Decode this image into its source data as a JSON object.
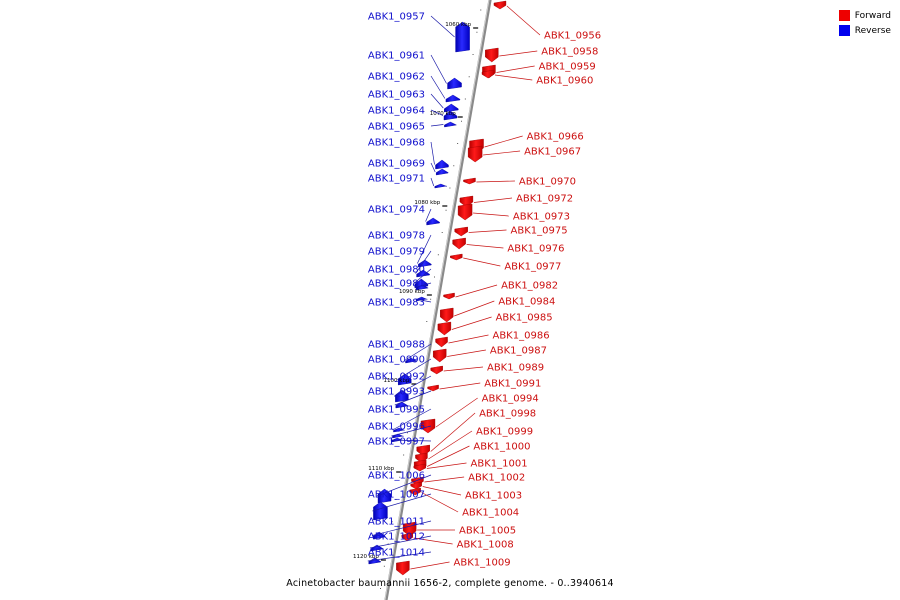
{
  "legend": {
    "forward_label": "Forward",
    "reverse_label": "Reverse",
    "forward_color": "#ee0000",
    "reverse_color": "#0000ee"
  },
  "caption": "Acinetobacter baumannii 1656-2, complete genome. - 0..3940614",
  "scale_ticks": [
    "1060 kbp",
    "1070 kbp",
    "1080 kbp",
    "1090 kbp",
    "1100 kbp",
    "1110 kbp",
    "1120 kbp"
  ],
  "genes_reverse": [
    "ABK1_0957",
    "ABK1_0961",
    "ABK1_0962",
    "ABK1_0963",
    "ABK1_0964",
    "ABK1_0965",
    "ABK1_0968",
    "ABK1_0969",
    "ABK1_0971",
    "ABK1_0974",
    "ABK1_0978",
    "ABK1_0979",
    "ABK1_0980",
    "ABK1_0981",
    "ABK1_0983",
    "ABK1_0988",
    "ABK1_0990",
    "ABK1_0992",
    "ABK1_0993",
    "ABK1_0995",
    "ABK1_0996",
    "ABK1_0997",
    "ABK1_1006",
    "ABK1_1007",
    "ABK1_1011",
    "ABK1_1012",
    "ABK1_1014"
  ],
  "genes_forward": [
    "ABK1_0956",
    "ABK1_0958",
    "ABK1_0959",
    "ABK1_0960",
    "ABK1_0966",
    "ABK1_0967",
    "ABK1_0970",
    "ABK1_0972",
    "ABK1_0973",
    "ABK1_0975",
    "ABK1_0976",
    "ABK1_0977",
    "ABK1_0982",
    "ABK1_0984",
    "ABK1_0985",
    "ABK1_0986",
    "ABK1_0987",
    "ABK1_0989",
    "ABK1_0991",
    "ABK1_0994",
    "ABK1_0998",
    "ABK1_0999",
    "ABK1_1000",
    "ABK1_1001",
    "ABK1_1002",
    "ABK1_1003",
    "ABK1_1004",
    "ABK1_1005",
    "ABK1_1008",
    "ABK1_1009"
  ]
}
